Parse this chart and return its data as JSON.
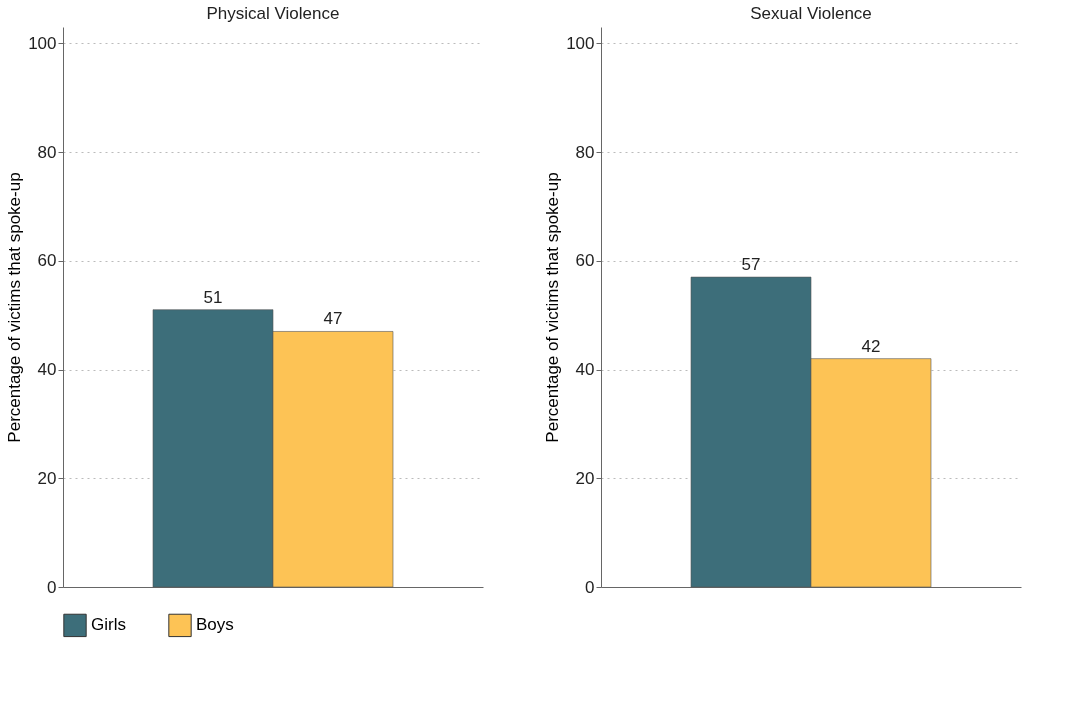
{
  "chart_data": [
    {
      "type": "bar",
      "title": "Physical Violence",
      "ylabel": "Percentage of victims that spoke-up",
      "categories": [
        null
      ],
      "series": [
        {
          "name": "Girls",
          "color": "#3d6e7a",
          "values": [
            51
          ]
        },
        {
          "name": "Boys",
          "color": "#fdc355",
          "values": [
            47
          ]
        }
      ],
      "ylim": [
        0,
        103
      ],
      "yticks": [
        0,
        20,
        40,
        60,
        80,
        100
      ],
      "grid": "y",
      "legend": "bottom",
      "data_labels": true
    },
    {
      "type": "bar",
      "title": "Sexual Violence",
      "ylabel": "Percentage of victims that spoke-up",
      "categories": [
        null
      ],
      "series": [
        {
          "name": "Girls",
          "color": "#3d6e7a",
          "values": [
            57
          ]
        },
        {
          "name": "Boys",
          "color": "#fdc355",
          "values": [
            42
          ]
        }
      ],
      "ylim": [
        0,
        103
      ],
      "yticks": [
        0,
        20,
        40,
        60,
        80,
        100
      ],
      "grid": "y",
      "legend": "bottom",
      "data_labels": true
    }
  ]
}
